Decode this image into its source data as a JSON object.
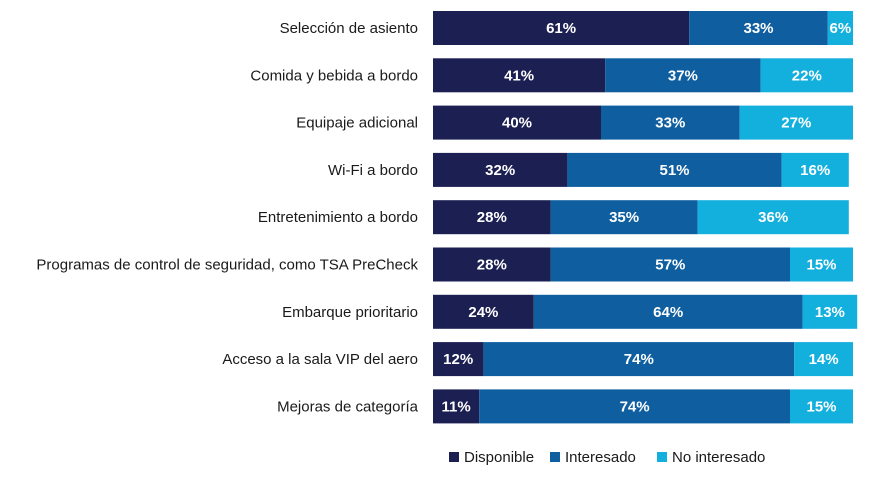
{
  "chart_data": {
    "type": "bar",
    "orientation": "horizontal",
    "stacked": true,
    "percent_stacked": true,
    "categories": [
      "Selección de asiento",
      "Comida y bebida a bordo",
      "Equipaje adicional",
      "Wi-Fi a bordo",
      "Entretenimiento a bordo",
      "Programas de control de seguridad, como TSA PreCheck",
      "Embarque prioritario",
      "Acceso a la sala VIP del aero",
      "Mejoras de categoría"
    ],
    "series": [
      {
        "name": "Disponible",
        "color": "#1b1f52",
        "values": [
          61,
          41,
          40,
          32,
          28,
          28,
          24,
          12,
          11
        ]
      },
      {
        "name": "Interesado",
        "color": "#0f5fa0",
        "values": [
          33,
          37,
          33,
          51,
          35,
          57,
          64,
          74,
          74
        ]
      },
      {
        "name": "No interesado",
        "color": "#13afdd",
        "values": [
          6,
          22,
          27,
          16,
          36,
          15,
          13,
          14,
          15
        ]
      }
    ],
    "value_suffix": "%",
    "xlim": [
      0,
      100
    ],
    "grid": false,
    "legend_position": "bottom"
  }
}
